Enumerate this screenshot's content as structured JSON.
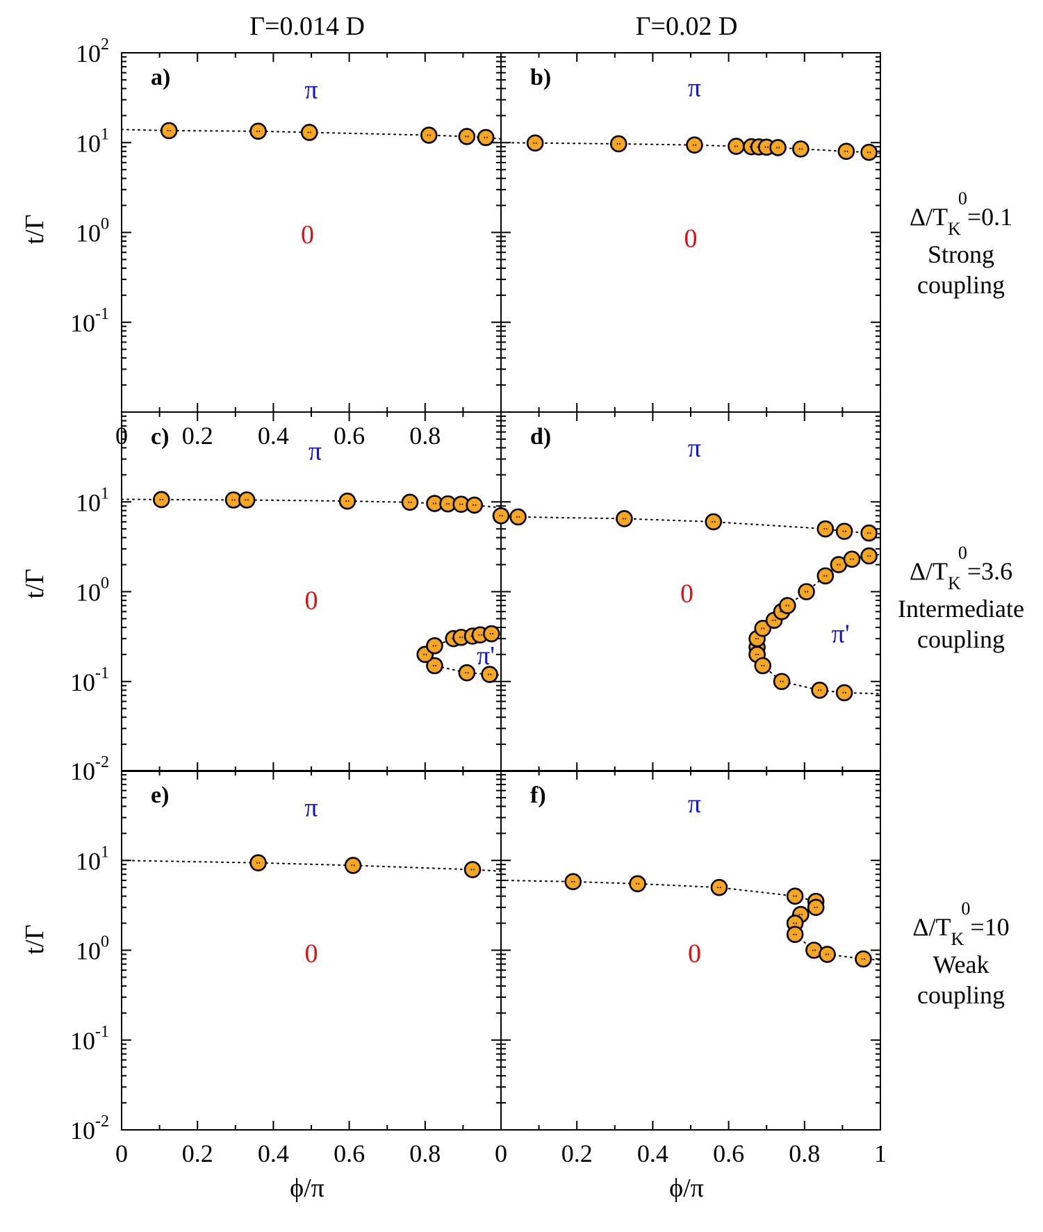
{
  "figure": {
    "column_titles": [
      "Γ=0.014 D",
      "Γ=0.02 D"
    ],
    "row_labels": [
      {
        "main": "Δ/T",
        "sub": "K",
        "sup": "0",
        "value": "=0.1",
        "line1": "Strong",
        "line2": "coupling"
      },
      {
        "main": "Δ/T",
        "sub": "K",
        "sup": "0",
        "value": "=3.6",
        "line1": "Intermediate",
        "line2": "coupling"
      },
      {
        "main": "Δ/T",
        "sub": "K",
        "sup": "0",
        "value": "=10",
        "line1": "Weak",
        "line2": "coupling"
      }
    ],
    "ylabel": "t/Γ",
    "xlabel": "ϕ/π",
    "colors": {
      "marker_fill": "#f5a623",
      "marker_stroke": "#000000",
      "pi_label": "#1515d8",
      "zero_label": "#e01010",
      "line": "#000000"
    }
  },
  "chart_data": [
    {
      "type": "scatter",
      "panel": "a)",
      "column": 0,
      "row": 0,
      "xlim": [
        0,
        1
      ],
      "ylim": [
        0.01,
        100
      ],
      "yscale": "log",
      "xticks": [
        "0",
        "0.2",
        "0.4",
        "0.6",
        "0.8"
      ],
      "yticks": [
        {
          "m": "10",
          "e": "2"
        },
        {
          "m": "10",
          "e": "1"
        },
        {
          "m": "10",
          "e": "0"
        },
        {
          "m": "10",
          "e": "-1"
        }
      ],
      "region_labels": [
        {
          "text": "π",
          "x": 0.5,
          "y": 40
        },
        {
          "text": "0",
          "x": 0.49,
          "y": 0.97
        }
      ],
      "series": [
        {
          "points": [
            [
              0.0,
              14
            ],
            [
              0.125,
              13.6
            ],
            [
              0.36,
              13.4
            ],
            [
              0.495,
              13.0
            ],
            [
              0.81,
              12.1
            ],
            [
              0.91,
              11.7
            ],
            [
              0.96,
              11.4
            ],
            [
              1.0,
              11.0
            ]
          ]
        }
      ]
    },
    {
      "type": "scatter",
      "panel": "b)",
      "column": 1,
      "row": 0,
      "xlim": [
        0,
        1
      ],
      "ylim": [
        0.01,
        100
      ],
      "yscale": "log",
      "xticks": [],
      "yticks": [],
      "region_labels": [
        {
          "text": "π",
          "x": 0.51,
          "y": 42
        },
        {
          "text": "0",
          "x": 0.5,
          "y": 0.88
        }
      ],
      "series": [
        {
          "points": [
            [
              0.0,
              10.0
            ],
            [
              0.09,
              9.9
            ],
            [
              0.31,
              9.7
            ],
            [
              0.51,
              9.4
            ],
            [
              0.62,
              9.1
            ],
            [
              0.66,
              9.0
            ],
            [
              0.68,
              8.95
            ],
            [
              0.7,
              8.9
            ],
            [
              0.73,
              8.8
            ],
            [
              0.79,
              8.5
            ],
            [
              0.91,
              8.0
            ],
            [
              0.97,
              7.8
            ],
            [
              1.0,
              7.6
            ]
          ]
        }
      ]
    },
    {
      "type": "scatter",
      "panel": "c)",
      "column": 0,
      "row": 1,
      "xlim": [
        0,
        1
      ],
      "ylim": [
        0.01,
        100
      ],
      "yscale": "log",
      "xticks": [],
      "yticks": [
        {
          "m": "10",
          "e": "1"
        },
        {
          "m": "10",
          "e": "0"
        },
        {
          "m": "10",
          "e": "-1"
        }
      ],
      "region_labels": [
        {
          "text": "π",
          "x": 0.51,
          "y": 38
        },
        {
          "text": "0",
          "x": 0.5,
          "y": 0.82
        },
        {
          "text": "π'",
          "x": 0.96,
          "y": 0.2
        }
      ],
      "series": [
        {
          "points": [
            [
              0.0,
              10.7
            ],
            [
              0.105,
              10.6
            ],
            [
              0.295,
              10.5
            ],
            [
              0.33,
              10.5
            ],
            [
              0.595,
              10.2
            ],
            [
              0.76,
              9.9
            ],
            [
              0.825,
              9.6
            ],
            [
              0.86,
              9.5
            ],
            [
              0.895,
              9.4
            ],
            [
              0.93,
              9.2
            ],
            [
              1.0,
              8.6
            ]
          ]
        },
        {
          "points": [
            [
              0.8,
              0.2
            ],
            [
              0.825,
              0.15
            ],
            [
              0.91,
              0.125
            ],
            [
              0.97,
              0.12
            ],
            [
              1.0,
              0.118
            ]
          ]
        },
        {
          "points": [
            [
              0.8,
              0.2
            ],
            [
              0.825,
              0.25
            ],
            [
              0.875,
              0.3
            ],
            [
              0.895,
              0.31
            ],
            [
              0.925,
              0.32
            ],
            [
              0.945,
              0.33
            ],
            [
              0.975,
              0.34
            ]
          ]
        }
      ]
    },
    {
      "type": "scatter",
      "panel": "d)",
      "column": 1,
      "row": 1,
      "xlim": [
        0,
        1
      ],
      "ylim": [
        0.01,
        100
      ],
      "yscale": "log",
      "xticks": [],
      "yticks": [],
      "region_labels": [
        {
          "text": "π",
          "x": 0.51,
          "y": 41
        },
        {
          "text": "0",
          "x": 0.49,
          "y": 0.98
        },
        {
          "text": "π'",
          "x": 0.895,
          "y": 0.35
        }
      ],
      "series": [
        {
          "points": [
            [
              0.0,
              7.0
            ],
            [
              0.045,
              6.8
            ],
            [
              0.325,
              6.5
            ],
            [
              0.56,
              6.0
            ],
            [
              0.855,
              5.0
            ],
            [
              0.905,
              4.7
            ],
            [
              0.97,
              4.5
            ],
            [
              1.0,
              4.4
            ]
          ]
        },
        {
          "points": [
            [
              0.675,
              0.2
            ],
            [
              0.675,
              0.24
            ],
            [
              0.675,
              0.3
            ],
            [
              0.69,
              0.39
            ],
            [
              0.72,
              0.48
            ],
            [
              0.74,
              0.6
            ],
            [
              0.755,
              0.7
            ],
            [
              0.805,
              1.0
            ],
            [
              0.855,
              1.5
            ],
            [
              0.89,
              2.0
            ],
            [
              0.925,
              2.3
            ],
            [
              0.97,
              2.5
            ],
            [
              1.0,
              2.6
            ]
          ]
        },
        {
          "points": [
            [
              0.675,
              0.2
            ],
            [
              0.69,
              0.15
            ],
            [
              0.74,
              0.1
            ],
            [
              0.84,
              0.08
            ],
            [
              0.905,
              0.075
            ],
            [
              1.0,
              0.073
            ]
          ]
        }
      ]
    },
    {
      "type": "scatter",
      "panel": "e)",
      "column": 0,
      "row": 2,
      "xlim": [
        0,
        1
      ],
      "ylim": [
        0.01,
        100
      ],
      "yscale": "log",
      "xticks": [
        "0",
        "0.2",
        "0.4",
        "0.6",
        "0.8"
      ],
      "yticks": [
        {
          "m": "10",
          "e": "-2"
        },
        {
          "m": "10",
          "e": "1"
        },
        {
          "m": "10",
          "e": "0"
        },
        {
          "m": "10",
          "e": "-1"
        },
        {
          "m": "10",
          "e": "-2"
        }
      ],
      "region_labels": [
        {
          "text": "π",
          "x": 0.5,
          "y": 40
        },
        {
          "text": "0",
          "x": 0.5,
          "y": 0.95
        }
      ],
      "series": [
        {
          "points": [
            [
              0.0,
              10.0
            ],
            [
              0.36,
              9.4
            ],
            [
              0.61,
              8.8
            ],
            [
              0.925,
              7.9
            ],
            [
              1.0,
              7.6
            ]
          ]
        }
      ]
    },
    {
      "type": "scatter",
      "panel": "f)",
      "column": 1,
      "row": 2,
      "xlim": [
        0,
        1
      ],
      "ylim": [
        0.01,
        100
      ],
      "yscale": "log",
      "xticks": [
        "0",
        "0.2",
        "0.4",
        "0.6",
        "0.8",
        "1"
      ],
      "yticks": [],
      "region_labels": [
        {
          "text": "π",
          "x": 0.51,
          "y": 44
        },
        {
          "text": "0",
          "x": 0.51,
          "y": 0.95
        }
      ],
      "series": [
        {
          "points": [
            [
              0.0,
              6.0
            ],
            [
              0.19,
              5.8
            ],
            [
              0.36,
              5.5
            ],
            [
              0.575,
              5.0
            ],
            [
              0.775,
              4.0
            ],
            [
              0.83,
              3.5
            ],
            [
              0.83,
              3.0
            ],
            [
              0.79,
              2.5
            ],
            [
              0.775,
              2.0
            ],
            [
              0.775,
              1.5
            ],
            [
              0.825,
              1.0
            ],
            [
              0.86,
              0.9
            ],
            [
              0.955,
              0.8
            ],
            [
              1.0,
              0.78
            ]
          ]
        }
      ]
    }
  ]
}
